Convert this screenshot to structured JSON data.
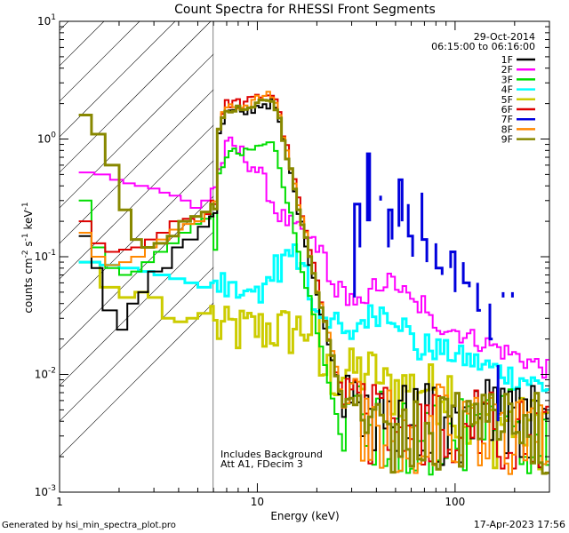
{
  "chart_data": {
    "type": "line",
    "title": "Count Spectra for RHESSI Front Segments",
    "xlabel": "Energy (keV)",
    "ylabel_main": "counts cm",
    "ylabel_sup1": "-2",
    "ylabel_mid": " s",
    "ylabel_sup2": "-1",
    "ylabel_end": " keV",
    "ylabel_sup3": "-1",
    "xscale": "log",
    "yscale": "log",
    "xlim": [
      1,
      300
    ],
    "ylim": [
      0.001,
      10
    ],
    "x_ticks": [
      {
        "value": 1,
        "label": "1"
      },
      {
        "value": 10,
        "label": "10"
      },
      {
        "value": 100,
        "label": "100"
      }
    ],
    "y_ticks": [
      {
        "value": 0.001,
        "base": "10",
        "exp": "-3"
      },
      {
        "value": 0.01,
        "base": "10",
        "exp": "-2"
      },
      {
        "value": 0.1,
        "base": "10",
        "exp": "-1"
      },
      {
        "value": 1,
        "base": "10",
        "exp": "0"
      },
      {
        "value": 10,
        "base": "10",
        "exp": "1"
      }
    ],
    "hatched_region": [
      1,
      6
    ],
    "date": "29-Oct-2014",
    "time_range": "06:15:00 to 06:16:00",
    "annotations": [
      "Includes Background",
      "Att A1, FDecim 3"
    ],
    "legend_position": "top-right",
    "series": [
      {
        "name": "1F",
        "color": "#000000",
        "width": 2,
        "profile": "main",
        "low": [
          [
            1.25,
            0.15
          ],
          [
            1.45,
            0.08
          ],
          [
            1.65,
            0.035
          ],
          [
            1.95,
            0.024
          ],
          [
            2.2,
            0.04
          ],
          [
            2.5,
            0.05
          ],
          [
            2.8,
            0.075
          ],
          [
            3.3,
            0.08
          ],
          [
            3.7,
            0.12
          ],
          [
            4.2,
            0.14
          ],
          [
            5.0,
            0.18
          ],
          [
            5.7,
            0.22
          ]
        ],
        "peak": 2.0,
        "hi": 0.0045
      },
      {
        "name": "2F",
        "color": "#ff00ff",
        "width": 2,
        "profile": "two",
        "low": [
          [
            1.25,
            0.52
          ],
          [
            1.5,
            0.5
          ],
          [
            1.8,
            0.45
          ],
          [
            2.1,
            0.42
          ],
          [
            2.4,
            0.4
          ],
          [
            2.8,
            0.38
          ],
          [
            3.2,
            0.35
          ],
          [
            3.6,
            0.33
          ],
          [
            4.1,
            0.3
          ],
          [
            4.6,
            0.26
          ],
          [
            5.2,
            0.3
          ],
          [
            5.8,
            0.38
          ]
        ]
      },
      {
        "name": "3F",
        "color": "#00dd00",
        "width": 2,
        "profile": "main",
        "low": [
          [
            1.25,
            0.3
          ],
          [
            1.45,
            0.12
          ],
          [
            1.7,
            0.08
          ],
          [
            2.0,
            0.07
          ],
          [
            2.3,
            0.075
          ],
          [
            2.6,
            0.09
          ],
          [
            3.0,
            0.11
          ],
          [
            3.5,
            0.13
          ],
          [
            4.0,
            0.16
          ],
          [
            4.6,
            0.19
          ],
          [
            5.2,
            0.21
          ],
          [
            5.8,
            0.23
          ]
        ],
        "peak": 0.9,
        "hi": 0.004
      },
      {
        "name": "4F",
        "color": "#00ffff",
        "width": 3,
        "profile": "four",
        "low": [
          [
            1.25,
            0.09
          ],
          [
            1.6,
            0.085
          ],
          [
            2.0,
            0.08
          ],
          [
            2.5,
            0.075
          ],
          [
            3.0,
            0.07
          ],
          [
            3.6,
            0.065
          ],
          [
            4.3,
            0.06
          ],
          [
            5.0,
            0.055
          ],
          [
            5.8,
            0.06
          ]
        ]
      },
      {
        "name": "5F",
        "color": "#cccc00",
        "width": 3,
        "profile": "five",
        "low": [
          [
            1.25,
            0.09
          ],
          [
            1.6,
            0.055
          ],
          [
            2.0,
            0.045
          ],
          [
            2.4,
            0.05
          ],
          [
            2.8,
            0.045
          ],
          [
            3.3,
            0.03
          ],
          [
            3.8,
            0.028
          ],
          [
            4.4,
            0.03
          ],
          [
            5.0,
            0.033
          ],
          [
            5.8,
            0.038
          ]
        ]
      },
      {
        "name": "6F",
        "color": "#dd0000",
        "width": 2,
        "profile": "main",
        "low": [
          [
            1.25,
            0.2
          ],
          [
            1.45,
            0.13
          ],
          [
            1.7,
            0.11
          ],
          [
            2.0,
            0.115
          ],
          [
            2.3,
            0.12
          ],
          [
            2.7,
            0.14
          ],
          [
            3.1,
            0.16
          ],
          [
            3.6,
            0.2
          ],
          [
            4.2,
            0.21
          ],
          [
            4.8,
            0.2
          ],
          [
            5.4,
            0.23
          ],
          [
            5.8,
            0.3
          ]
        ],
        "peak": 2.4,
        "hi": 0.0045
      },
      {
        "name": "7F",
        "color": "#0000dd",
        "width": 3,
        "profile": "seven",
        "segments": [
          [
            [
              31,
              0.045
            ],
            [
              31,
              0.28
            ],
            [
              33,
              0.28
            ],
            [
              33,
              0.12
            ]
          ],
          [
            [
              36,
              0.2
            ],
            [
              36,
              0.75
            ],
            [
              37,
              0.75
            ],
            [
              37,
              0.2
            ]
          ],
          [
            [
              42,
              0.33
            ],
            [
              42,
              0.3
            ]
          ],
          [
            [
              46,
              0.12
            ],
            [
              46,
              0.25
            ],
            [
              48,
              0.25
            ],
            [
              48,
              0.14
            ]
          ],
          [
            [
              52,
              0.18
            ],
            [
              52,
              0.45
            ],
            [
              54,
              0.45
            ],
            [
              54,
              0.2
            ]
          ],
          [
            [
              58,
              0.28
            ],
            [
              58,
              0.15
            ],
            [
              61,
              0.15
            ],
            [
              61,
              0.1
            ]
          ],
          [
            [
              68,
              0.35
            ],
            [
              68,
              0.14
            ],
            [
              72,
              0.14
            ],
            [
              72,
              0.09
            ]
          ],
          [
            [
              80,
              0.13
            ],
            [
              80,
              0.08
            ],
            [
              86,
              0.08
            ],
            [
              86,
              0.07
            ]
          ],
          [
            [
              95,
              0.08
            ],
            [
              95,
              0.11
            ],
            [
              100,
              0.11
            ],
            [
              100,
              0.05
            ]
          ],
          [
            [
              110,
              0.09
            ],
            [
              110,
              0.06
            ],
            [
              118,
              0.06
            ],
            [
              118,
              0.055
            ]
          ],
          [
            [
              130,
              0.06
            ],
            [
              130,
              0.035
            ],
            [
              135,
              0.035
            ]
          ],
          [
            [
              150,
              0.04
            ],
            [
              150,
              0.02
            ],
            [
              155,
              0.02
            ]
          ],
          [
            [
              165,
              0.012
            ],
            [
              165,
              0.004
            ]
          ],
          [
            [
              175,
              0.05
            ],
            [
              175,
              0.045
            ]
          ],
          [
            [
              195,
              0.05
            ],
            [
              195,
              0.045
            ]
          ]
        ]
      },
      {
        "name": "8F",
        "color": "#ff8800",
        "width": 2,
        "profile": "main",
        "low": [
          [
            1.25,
            0.16
          ],
          [
            1.45,
            0.1
          ],
          [
            1.7,
            0.085
          ],
          [
            2.0,
            0.09
          ],
          [
            2.3,
            0.1
          ],
          [
            2.7,
            0.12
          ],
          [
            3.1,
            0.14
          ],
          [
            3.6,
            0.17
          ],
          [
            4.2,
            0.19
          ],
          [
            4.8,
            0.2
          ],
          [
            5.4,
            0.24
          ],
          [
            5.8,
            0.28
          ]
        ],
        "peak": 2.3,
        "hi": 0.004
      },
      {
        "name": "9F",
        "color": "#888800",
        "width": 3,
        "profile": "main",
        "low": [
          [
            1.25,
            1.6
          ],
          [
            1.45,
            1.1
          ],
          [
            1.7,
            0.6
          ],
          [
            2.0,
            0.25
          ],
          [
            2.3,
            0.14
          ],
          [
            2.6,
            0.12
          ],
          [
            3.0,
            0.13
          ],
          [
            3.5,
            0.15
          ],
          [
            4.0,
            0.2
          ],
          [
            4.6,
            0.22
          ],
          [
            5.2,
            0.24
          ],
          [
            5.8,
            0.28
          ]
        ],
        "peak": 2.1,
        "hi": 0.004
      }
    ]
  },
  "footer": {
    "left": "Generated by hsi_min_spectra_plot.pro",
    "right": "17-Apr-2023 17:56"
  }
}
